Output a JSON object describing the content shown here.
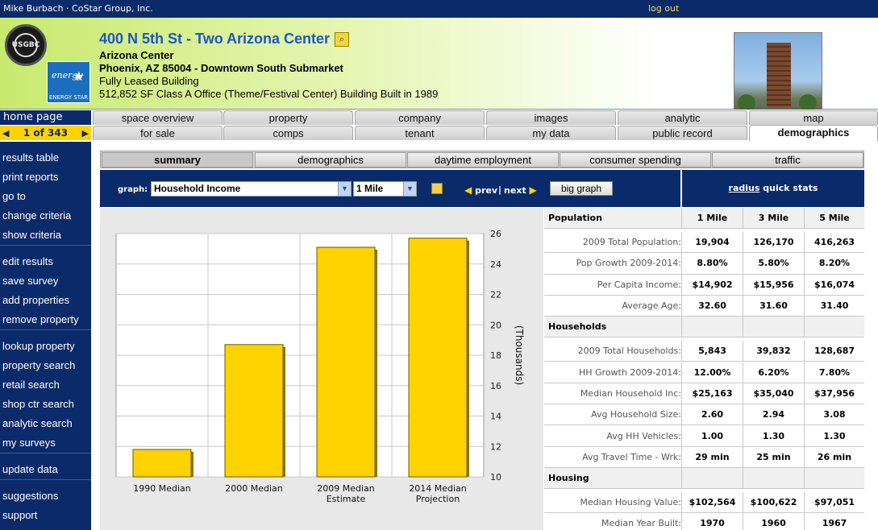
{
  "topbar": {
    "user": "Mike Burbach · CoStar Group, Inc.",
    "logout": "log out"
  },
  "header": {
    "title": "400 N 5th St - Two Arizona Center",
    "name": "Arizona Center",
    "location": "Phoenix, AZ 85004 - Downtown South Submarket",
    "status": "Fully Leased Building",
    "details": "512,852 SF Class A Office (Theme/Festival Center) Building Built in 1989",
    "energy_star": "ENERGY STAR",
    "energy_script": "energy",
    "leed": "USGBC"
  },
  "nav": {
    "home": "home page",
    "counter": "1 of 343",
    "tabs_row1": [
      "space overview",
      "property",
      "company",
      "images",
      "analytic",
      "map"
    ],
    "tabs_row2": [
      "for sale",
      "comps",
      "tenant",
      "my data",
      "public record",
      "demographics"
    ],
    "active_tab": "demographics"
  },
  "sidebar": {
    "groups": [
      [
        "results table",
        "print reports",
        "go to",
        "change criteria",
        "show criteria"
      ],
      [
        "edit results",
        "save survey",
        "add properties",
        "remove property"
      ],
      [
        "lookup property",
        "property search",
        "retail search",
        "shop ctr search",
        "analytic search",
        "my surveys"
      ],
      [
        "update data"
      ],
      [
        "suggestions",
        "support"
      ]
    ]
  },
  "subtabs": [
    "summary",
    "demographics",
    "daytime employment",
    "consumer spending",
    "traffic"
  ],
  "toolbar": {
    "graph_label": "graph:",
    "graph_value": "Household Income",
    "radius_value": "1 Mile",
    "prev": "prev",
    "sep": "|",
    "next": "next",
    "big_graph": "big graph",
    "radius_link": "radius",
    "quick_stats": "quick stats"
  },
  "chart_data": {
    "type": "bar",
    "categories": [
      "1990 Median",
      "2000 Median",
      "2009 Median Estimate",
      "2014 Median Projection"
    ],
    "category_lines": [
      [
        "1990 Median"
      ],
      [
        "2000 Median"
      ],
      [
        "2009 Median",
        "Estimate"
      ],
      [
        "2014 Median",
        "Projection"
      ]
    ],
    "values": [
      11.8,
      18.7,
      25.1,
      25.7
    ],
    "ylim": [
      10,
      26
    ],
    "yticks": [
      10,
      12,
      14,
      16,
      18,
      20,
      22,
      24,
      26
    ],
    "ylabel": "(Thousands)",
    "ytick_side": "right",
    "grid": true,
    "bar_color": "#ffd200"
  },
  "stats": {
    "columns": [
      "1 Mile",
      "3 Mile",
      "5 Mile"
    ],
    "sections": [
      {
        "title": "Population",
        "rows": [
          {
            "label": "2009 Total Population:",
            "values": [
              "19,904",
              "126,170",
              "416,263"
            ]
          },
          {
            "label": "Pop Growth 2009-2014:",
            "values": [
              "8.80%",
              "5.80%",
              "8.20%"
            ]
          },
          {
            "label": "Per Capita Income:",
            "values": [
              "$14,902",
              "$15,956",
              "$16,074"
            ]
          },
          {
            "label": "Average Age:",
            "values": [
              "32.60",
              "31.60",
              "31.40"
            ]
          }
        ]
      },
      {
        "title": "Households",
        "rows": [
          {
            "label": "2009 Total Households:",
            "values": [
              "5,843",
              "39,832",
              "128,687"
            ]
          },
          {
            "label": "HH Growth 2009-2014:",
            "values": [
              "12.00%",
              "6.20%",
              "7.80%"
            ]
          },
          {
            "label": "Median Household Inc:",
            "values": [
              "$25,163",
              "$35,040",
              "$37,956"
            ]
          },
          {
            "label": "Avg Household Size:",
            "values": [
              "2.60",
              "2.94",
              "3.08"
            ]
          },
          {
            "label": "Avg HH Vehicles:",
            "values": [
              "1.00",
              "1.30",
              "1.30"
            ]
          },
          {
            "label": "Avg Travel Time - Wrk:",
            "values": [
              "29 min",
              "25 min",
              "26 min"
            ]
          }
        ]
      },
      {
        "title": "Housing",
        "rows": [
          {
            "label": "Median Housing Value:",
            "values": [
              "$102,564",
              "$100,622",
              "$97,051"
            ]
          },
          {
            "label": "Median Year Built:",
            "values": [
              "1970",
              "1960",
              "1967"
            ]
          }
        ]
      }
    ]
  }
}
